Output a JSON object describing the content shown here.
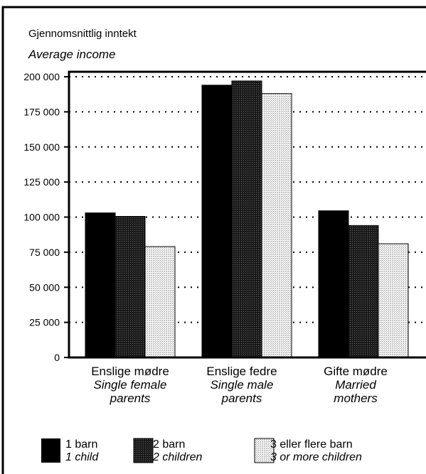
{
  "chart_data": {
    "type": "bar",
    "title": "Gjennomsnittlig inntekt",
    "subtitle": "Average income",
    "categories": [
      {
        "line1": "Enslige mødre",
        "line2": "Single female",
        "line3": "parents"
      },
      {
        "line1": "Enslige fedre",
        "line2": "Single male",
        "line3": "parents"
      },
      {
        "line1": "Gifte mødre",
        "line2": "Married",
        "line3": "mothers"
      }
    ],
    "series": [
      {
        "name": "1 barn",
        "name_en": "1 child",
        "values": [
          103000,
          194000,
          104500
        ],
        "color": "#000000"
      },
      {
        "name": "2 barn",
        "name_en": "2 children",
        "values": [
          100500,
          197000,
          94000
        ],
        "color": "#222222"
      },
      {
        "name": "3 eller flere barn",
        "name_en": "3 or more children",
        "values": [
          79000,
          188000,
          81000
        ],
        "color": "#e2e2e2"
      }
    ],
    "y_ticks": [
      "0",
      "25 000",
      "50 000",
      "75 000",
      "100 000",
      "125 000",
      "150 000",
      "175 000",
      "200 000"
    ],
    "ylim": [
      0,
      205000
    ],
    "grid": "dotted horizontal",
    "legend_position": "bottom"
  }
}
